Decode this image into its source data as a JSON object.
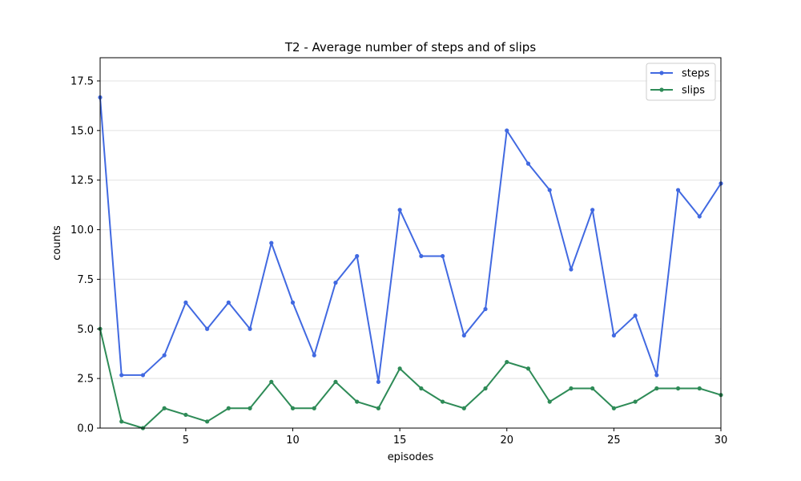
{
  "chart_data": {
    "type": "line",
    "title": "T2 - Average number of steps and of slips",
    "xlabel": "episodes",
    "ylabel": "counts",
    "xlim": [
      1,
      30
    ],
    "ylim": [
      0,
      18.67
    ],
    "xticks": [
      5,
      10,
      15,
      20,
      25,
      30
    ],
    "yticks": [
      0.0,
      2.5,
      5.0,
      7.5,
      10.0,
      12.5,
      15.0,
      17.5
    ],
    "ytick_labels": [
      "0.0",
      "2.5",
      "5.0",
      "7.5",
      "10.0",
      "12.5",
      "15.0",
      "17.5"
    ],
    "grid": "horizontal",
    "legend_position": "top-right",
    "x": [
      1,
      2,
      3,
      4,
      5,
      6,
      7,
      8,
      9,
      10,
      11,
      12,
      13,
      14,
      15,
      16,
      17,
      18,
      19,
      20,
      21,
      22,
      23,
      24,
      25,
      26,
      27,
      28,
      29,
      30
    ],
    "series": [
      {
        "name": "steps",
        "color": "#4169e1",
        "values": [
          16.67,
          2.67,
          2.67,
          3.67,
          6.33,
          5.0,
          6.33,
          5.0,
          9.33,
          6.33,
          3.67,
          7.33,
          8.67,
          2.33,
          11.0,
          8.67,
          8.67,
          4.67,
          6.0,
          15.0,
          13.33,
          12.0,
          8.0,
          11.0,
          4.67,
          5.67,
          2.67,
          12.0,
          10.67,
          12.33
        ]
      },
      {
        "name": "slips",
        "color": "#2e8b57",
        "values": [
          5.0,
          0.33,
          0.0,
          1.0,
          0.67,
          0.33,
          1.0,
          1.0,
          2.33,
          1.0,
          1.0,
          2.33,
          1.33,
          1.0,
          3.0,
          2.0,
          1.33,
          1.0,
          2.0,
          3.33,
          3.0,
          1.33,
          2.0,
          2.0,
          1.0,
          1.33,
          2.0,
          2.0,
          2.0,
          1.67
        ]
      }
    ]
  }
}
